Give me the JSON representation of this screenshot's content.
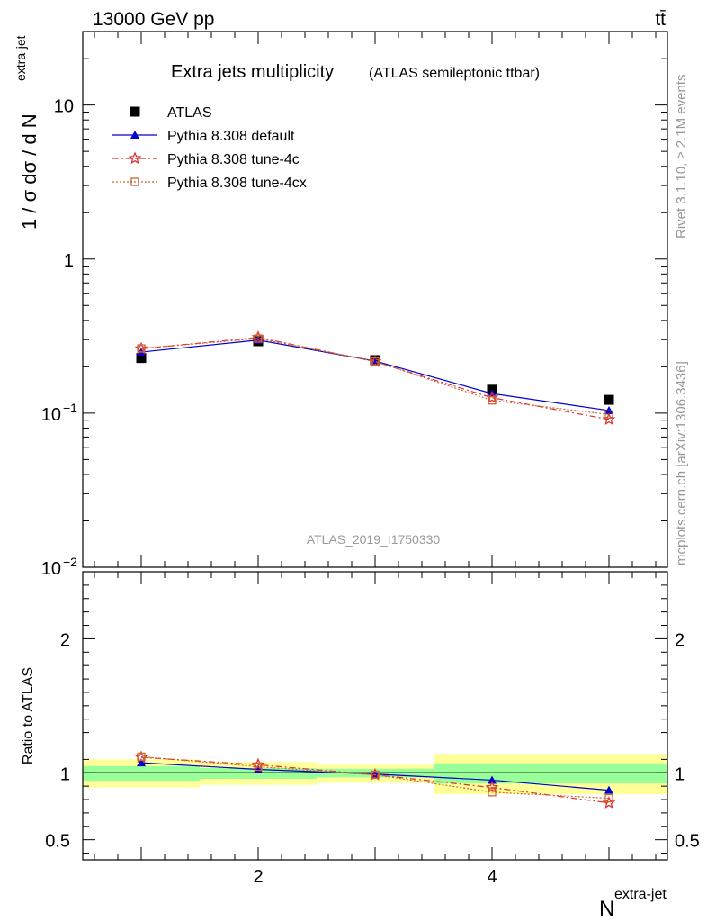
{
  "header": {
    "energy_label": "13000 GeV pp",
    "process_label": "tt̄"
  },
  "side_labels": {
    "rivet": "Rivet 3.1.10, ≥ 2.1M events",
    "mcplots": "mcplots.cern.ch [arXiv:1306.3436]"
  },
  "chart_data": [
    {
      "type": "line",
      "title": "Extra jets multiplicity",
      "subtitle": "(ATLAS semileptonic ttbar)",
      "ylabel": "1 / σ dσ / d N",
      "ylabel_sup": "extra-jet",
      "yscale": "log",
      "ylim": [
        0.01,
        30
      ],
      "xlim": [
        0.5,
        5.5
      ],
      "y_ticks": [
        {
          "value": 10,
          "label": "10"
        },
        {
          "value": 1,
          "label": "1"
        },
        {
          "value": 0.1,
          "label": "10",
          "sup": "−1"
        },
        {
          "value": 0.01,
          "label": "10",
          "sup": "−2"
        }
      ],
      "watermark": "ATLAS_2019_I1750330",
      "legend_position": "top-left",
      "x": [
        1,
        2,
        3,
        4,
        5
      ],
      "series": [
        {
          "name": "ATLAS",
          "values": [
            0.228,
            0.293,
            0.221,
            0.142,
            0.122
          ],
          "color": "#000000",
          "marker": "square",
          "line": "none"
        },
        {
          "name": "Pythia 8.308 default",
          "values": [
            0.249,
            0.298,
            0.218,
            0.134,
            0.104
          ],
          "color": "#0000cc",
          "marker": "triangle",
          "line": "solid"
        },
        {
          "name": "Pythia 8.308 tune-4c",
          "values": [
            0.262,
            0.31,
            0.216,
            0.126,
            0.091
          ],
          "color": "#dd3333",
          "marker": "star",
          "line": "dashdot"
        },
        {
          "name": "Pythia 8.308 tune-4cx",
          "values": [
            0.263,
            0.305,
            0.217,
            0.121,
            0.098
          ],
          "color": "#cc6633",
          "marker": "open-square",
          "line": "dotted"
        }
      ]
    },
    {
      "type": "line",
      "ylabel": "Ratio to ATLAS",
      "xlabel": "N",
      "xlabel_sup": "extra-jet",
      "ylim": [
        0.35,
        2.5
      ],
      "xlim": [
        0.5,
        5.5
      ],
      "y_ticks": [
        {
          "value": 2,
          "label": "2"
        },
        {
          "value": 1,
          "label": "1"
        },
        {
          "value": 0.5,
          "label": "0.5"
        }
      ],
      "x_ticks": [
        2,
        4
      ],
      "bands": {
        "bins": [
          [
            0.5,
            1.5
          ],
          [
            1.5,
            2.5
          ],
          [
            2.5,
            3.5
          ],
          [
            3.5,
            5.5
          ]
        ],
        "stat": [
          [
            0.94,
            1.05
          ],
          [
            0.955,
            1.035
          ],
          [
            0.965,
            1.03
          ],
          [
            0.92,
            1.07
          ]
        ],
        "total": [
          [
            0.89,
            1.1
          ],
          [
            0.91,
            1.08
          ],
          [
            0.925,
            1.06
          ],
          [
            0.84,
            1.14
          ]
        ],
        "stat_color": "#99ff99",
        "total_color": "#ffff99"
      },
      "x": [
        1,
        2,
        3,
        4,
        5
      ],
      "series": [
        {
          "name": "Pythia 8.308 default",
          "values": [
            1.075,
            1.025,
            0.99,
            0.945,
            0.87
          ],
          "color": "#0000cc",
          "marker": "triangle",
          "line": "solid"
        },
        {
          "name": "Pythia 8.308 tune-4c",
          "values": [
            1.115,
            1.06,
            0.985,
            0.89,
            0.775
          ],
          "color": "#dd3333",
          "marker": "star",
          "line": "dashdot"
        },
        {
          "name": "Pythia 8.308 tune-4cx",
          "values": [
            1.12,
            1.045,
            0.985,
            0.855,
            0.81
          ],
          "color": "#cc6633",
          "marker": "open-square",
          "line": "dotted"
        }
      ]
    }
  ]
}
